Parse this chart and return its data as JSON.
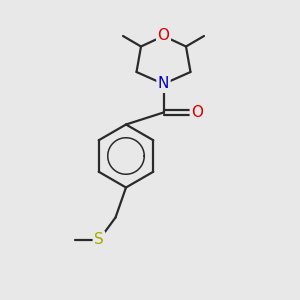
{
  "background_color": "#e8e8e8",
  "bond_color": "#2a2a2a",
  "atom_colors": {
    "O": "#dd0000",
    "N": "#0000cc",
    "S": "#aaaa00",
    "C": "#2a2a2a"
  },
  "font_size": 10,
  "figsize": [
    3.0,
    3.0
  ],
  "dpi": 100
}
